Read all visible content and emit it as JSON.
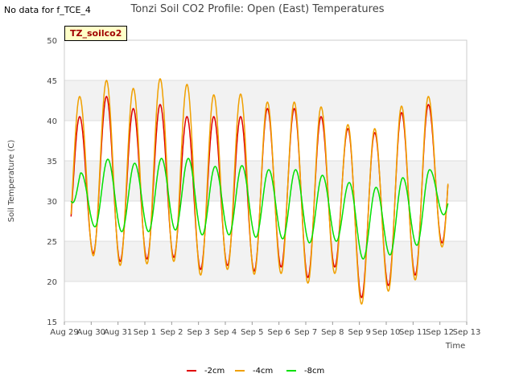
{
  "header": {
    "nodata_text": "No data for f_TCE_4",
    "title": "Tonzi Soil CO2 Profile: Open (East) Temperatures",
    "site_badge": "TZ_soilco2"
  },
  "chart_data": {
    "type": "line",
    "xlabel": "Time",
    "ylabel": "Soil Temperature (C)",
    "ylim": [
      15,
      50
    ],
    "yticks": [
      15,
      20,
      25,
      30,
      35,
      40,
      45,
      50
    ],
    "xlim": [
      0,
      15
    ],
    "xtick_labels": [
      "Aug 29",
      "Aug 30",
      "Aug 31",
      "Sep 1",
      "Sep 2",
      "Sep 3",
      "Sep 4",
      "Sep 5",
      "Sep 6",
      "Sep 7",
      "Sep 8",
      "Sep 9",
      "Sep 10",
      "Sep 11",
      "Sep 12",
      "Sep 13"
    ],
    "grid": true,
    "legend_position": "bottom",
    "daily_extremes": {
      "note_days": [
        "Aug 29",
        "Aug 30",
        "Aug 31",
        "Sep 1",
        "Sep 2",
        "Sep 3",
        "Sep 4",
        "Sep 5",
        "Sep 6",
        "Sep 7",
        "Sep 8",
        "Sep 9",
        "Sep 10",
        "Sep 11",
        "Sep 12"
      ]
    },
    "series": [
      {
        "name": "-2cm",
        "color": "#e00000",
        "mins": [
          23.5,
          23.5,
          22.5,
          22.8,
          23.0,
          21.5,
          22.0,
          21.3,
          21.8,
          20.5,
          21.8,
          18.0,
          19.5,
          20.8,
          24.8
        ],
        "maxs": [
          40.5,
          43.0,
          41.5,
          42.0,
          40.5,
          40.5,
          40.5,
          41.5,
          41.5,
          40.5,
          39.0,
          38.5,
          41.0,
          42.0
        ]
      },
      {
        "name": "-4cm",
        "color": "#f0a000",
        "mins": [
          23.0,
          23.2,
          22.0,
          22.2,
          22.5,
          20.8,
          21.5,
          20.9,
          21.0,
          19.8,
          21.0,
          17.2,
          18.8,
          20.2,
          24.3
        ],
        "maxs": [
          43.0,
          45.0,
          44.0,
          45.2,
          44.5,
          43.2,
          43.3,
          42.3,
          42.3,
          41.7,
          39.5,
          39.0,
          41.8,
          43.0
        ]
      },
      {
        "name": "-8cm",
        "color": "#00e000",
        "mins": [
          27.0,
          26.8,
          26.2,
          26.2,
          26.4,
          25.8,
          25.8,
          25.5,
          25.3,
          24.8,
          25.0,
          22.8,
          23.3,
          24.5,
          28.3
        ],
        "maxs": [
          33.5,
          35.2,
          34.7,
          35.3,
          35.3,
          34.3,
          34.4,
          33.9,
          33.9,
          33.2,
          32.3,
          31.7,
          32.9,
          33.9
        ],
        "start_value": 30.0
      }
    ]
  }
}
